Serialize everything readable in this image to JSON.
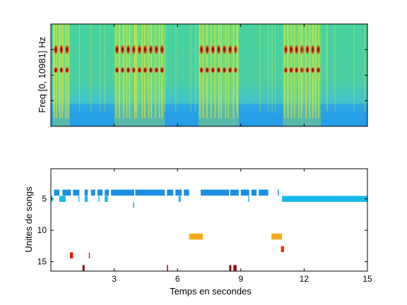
{
  "chart_data": [
    {
      "type": "heatmap",
      "ylabel": "Freq [0, 10981] Hz",
      "xlabel": "",
      "xlim": [
        0,
        15
      ],
      "y_ticks_shown": false,
      "x_tick_labels_shown": false,
      "colormap": "jet",
      "song_bursts_seconds": [
        [
          0.1,
          0.9
        ],
        [
          3.0,
          5.4
        ],
        [
          7.0,
          8.9
        ],
        [
          11.0,
          12.8
        ]
      ],
      "harmonic_bands_relative": [
        0.55,
        0.75
      ],
      "low_frequency_noise_band": true
    },
    {
      "type": "scatter",
      "title": "",
      "xlabel": "Temps en secondes",
      "ylabel": "Unites de songs",
      "xlim": [
        0,
        15
      ],
      "ylim": [
        16.5,
        0.2
      ],
      "y_reversed": true,
      "x_ticks": [
        "3",
        "6",
        "9",
        "12",
        "15"
      ],
      "y_ticks": [
        "5",
        "10",
        "15"
      ],
      "grid": false,
      "segments": [
        {
          "unit": 4,
          "start": 0.15,
          "end": 0.4,
          "color": "#1a8fe3"
        },
        {
          "unit": 4,
          "start": 0.55,
          "end": 0.95,
          "color": "#1a8fe3"
        },
        {
          "unit": 4,
          "start": 1.05,
          "end": 1.35,
          "color": "#1a8fe3"
        },
        {
          "unit": 4,
          "start": 1.6,
          "end": 1.75,
          "color": "#1a8fe3"
        },
        {
          "unit": 4,
          "start": 1.9,
          "end": 2.1,
          "color": "#1a8fe3"
        },
        {
          "unit": 4,
          "start": 2.2,
          "end": 2.45,
          "color": "#1a8fe3"
        },
        {
          "unit": 4,
          "start": 2.55,
          "end": 2.75,
          "color": "#1a8fe3"
        },
        {
          "unit": 4,
          "start": 2.85,
          "end": 3.95,
          "color": "#1a8fe3"
        },
        {
          "unit": 4,
          "start": 4.0,
          "end": 5.4,
          "color": "#1a8fe3"
        },
        {
          "unit": 4,
          "start": 5.5,
          "end": 5.8,
          "color": "#1a8fe3"
        },
        {
          "unit": 4,
          "start": 5.9,
          "end": 6.2,
          "color": "#1a8fe3"
        },
        {
          "unit": 4,
          "start": 6.3,
          "end": 6.55,
          "color": "#1a8fe3"
        },
        {
          "unit": 4,
          "start": 7.1,
          "end": 8.45,
          "color": "#1a8fe3"
        },
        {
          "unit": 4,
          "start": 8.5,
          "end": 8.9,
          "color": "#1a8fe3"
        },
        {
          "unit": 4,
          "start": 9.0,
          "end": 9.4,
          "color": "#1a8fe3"
        },
        {
          "unit": 4,
          "start": 9.5,
          "end": 9.75,
          "color": "#1a8fe3"
        },
        {
          "unit": 4,
          "start": 9.85,
          "end": 10.3,
          "color": "#1a8fe3"
        },
        {
          "unit": 4,
          "start": 10.75,
          "end": 10.8,
          "color": "#1a8fe3"
        },
        {
          "unit": 5,
          "start": 0.0,
          "end": 0.08,
          "color": "#18b8ea"
        },
        {
          "unit": 5,
          "start": 0.4,
          "end": 0.7,
          "color": "#18b8ea"
        },
        {
          "unit": 5,
          "start": 1.3,
          "end": 1.35,
          "color": "#18b8ea"
        },
        {
          "unit": 5,
          "start": 1.6,
          "end": 1.75,
          "color": "#18b8ea"
        },
        {
          "unit": 5,
          "start": 2.25,
          "end": 2.3,
          "color": "#18b8ea"
        },
        {
          "unit": 5,
          "start": 2.55,
          "end": 2.7,
          "color": "#18b8ea"
        },
        {
          "unit": 5,
          "start": 6.05,
          "end": 6.15,
          "color": "#18b8ea"
        },
        {
          "unit": 5,
          "start": 9.35,
          "end": 9.4,
          "color": "#18b8ea"
        },
        {
          "unit": 5,
          "start": 10.95,
          "end": 15.0,
          "color": "#18b8ea"
        },
        {
          "unit": 6,
          "start": 3.9,
          "end": 3.95,
          "color": "#18b8ea"
        },
        {
          "unit": 11,
          "start": 6.55,
          "end": 7.2,
          "color": "#f7a81a"
        },
        {
          "unit": 11,
          "start": 10.45,
          "end": 10.95,
          "color": "#f7a81a"
        },
        {
          "unit": 13,
          "start": 10.9,
          "end": 11.05,
          "color": "#ea3814"
        },
        {
          "unit": 14,
          "start": 0.9,
          "end": 1.05,
          "color": "#d82010"
        },
        {
          "unit": 14,
          "start": 1.8,
          "end": 1.85,
          "color": "#d82010"
        },
        {
          "unit": 16,
          "start": 1.5,
          "end": 1.6,
          "color": "#8c1010"
        },
        {
          "unit": 16,
          "start": 5.5,
          "end": 5.55,
          "color": "#8c1010"
        },
        {
          "unit": 16,
          "start": 8.45,
          "end": 8.55,
          "color": "#8c1010"
        },
        {
          "unit": 16,
          "start": 8.65,
          "end": 8.8,
          "color": "#8c1010"
        }
      ]
    }
  ]
}
